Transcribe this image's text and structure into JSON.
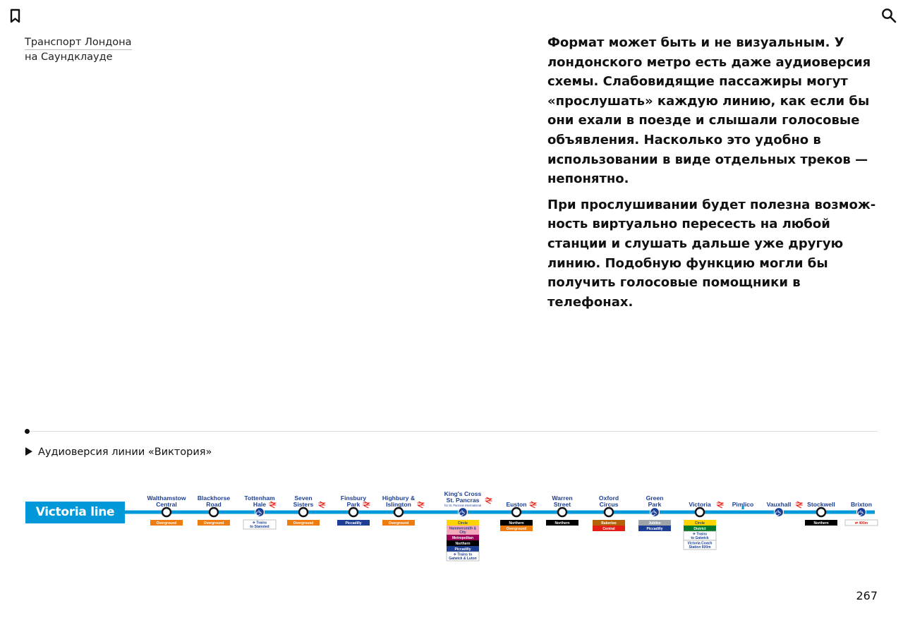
{
  "icons": {
    "bookmark": "bookmark-icon",
    "search": "search-icon",
    "play": "play-icon"
  },
  "sidebar": {
    "line1": "Транспорт Лондона",
    "line2": "на Саундклауде"
  },
  "article": {
    "p1": "Формат может быть и не визуальным. У лондон­ского метро есть даже аудиоверсия схемы. Сла­бовидящие пассажиры могут «прослушать» каждую линию, как если бы они ехали в поезде и слышали голосовые объявления. Насколько это удобно в использовании в виде отдельных треков — непонятно.",
    "p2": "При прослушивании будет полезна возмож­ность виртуально пересесть на любой станции и слушать дальше уже другую линию. Подоб­ную функцию могли бы получить голосовые помощники в телефонах."
  },
  "audio_link": "Аудиоверсия линии «Виктория»",
  "line_badge": "Victoria line",
  "colors": {
    "victoria": "#0098d8",
    "overground": "#ee7c0e",
    "piccadilly": "#1c3f94",
    "northern": "#000000",
    "circle": "#ffd300",
    "hammersmith": "#f3a9bb",
    "metropolitan": "#9b0056",
    "bakerloo": "#b36305",
    "central": "#e32017",
    "jubilee": "#a0a5a9",
    "district": "#00782a",
    "station_text": "#1c3f94",
    "rail": "#e32017"
  },
  "stations": [
    {
      "name": [
        "Walthamstow",
        "Central"
      ],
      "rail": false,
      "step_free": false,
      "interchanges": [
        {
          "label": "Overground",
          "color": "#ee7c0e",
          "text": "#ffffff"
        }
      ]
    },
    {
      "name": [
        "Blackhorse",
        "Road"
      ],
      "rail": false,
      "step_free": false,
      "interchanges": [
        {
          "label": "Overground",
          "color": "#ee7c0e",
          "text": "#ffffff"
        }
      ]
    },
    {
      "name": [
        "Tottenham",
        "Hale"
      ],
      "rail": true,
      "step_free": true,
      "interchanges": [
        {
          "label": "✈ Trains to Stansted",
          "color": "#ffffff",
          "text": "#1c3f94",
          "outline": true
        }
      ]
    },
    {
      "name": [
        "Seven",
        "Sisters"
      ],
      "rail": true,
      "step_free": false,
      "interchanges": [
        {
          "label": "Overground",
          "color": "#ee7c0e",
          "text": "#ffffff"
        }
      ]
    },
    {
      "name": [
        "Finsbury",
        "Park"
      ],
      "rail": true,
      "step_free": false,
      "interchanges": [
        {
          "label": "Piccadilly",
          "color": "#1c3f94",
          "text": "#ffffff"
        }
      ]
    },
    {
      "name": [
        "Highbury &",
        "Islington"
      ],
      "rail": true,
      "step_free": false,
      "interchanges": [
        {
          "label": "Overground",
          "color": "#ee7c0e",
          "text": "#ffffff"
        }
      ]
    },
    {
      "name": [
        "King's Cross",
        "St. Pancras"
      ],
      "sub": "for St. Pancras International",
      "rail": true,
      "step_free": true,
      "interchanges": [
        {
          "label": "Circle",
          "color": "#ffd300",
          "text": "#1c3f94"
        },
        {
          "label": "Hammersmith & City",
          "color": "#f3a9bb",
          "text": "#1c3f94"
        },
        {
          "label": "Metropolitan",
          "color": "#9b0056",
          "text": "#ffffff"
        },
        {
          "label": "Northern",
          "color": "#000000",
          "text": "#ffffff"
        },
        {
          "label": "Piccadilly",
          "color": "#1c3f94",
          "text": "#ffffff"
        },
        {
          "label": "✈ Trains to Gatwick & Luton",
          "color": "#ffffff",
          "text": "#1c3f94",
          "outline": true
        }
      ]
    },
    {
      "name": [
        "Euston"
      ],
      "rail": true,
      "step_free": false,
      "interchanges": [
        {
          "label": "Northern",
          "color": "#000000",
          "text": "#ffffff"
        },
        {
          "label": "Overground",
          "color": "#ee7c0e",
          "text": "#ffffff"
        }
      ]
    },
    {
      "name": [
        "Warren",
        "Street"
      ],
      "rail": false,
      "step_free": false,
      "interchanges": [
        {
          "label": "Northern",
          "color": "#000000",
          "text": "#ffffff"
        }
      ]
    },
    {
      "name": [
        "Oxford",
        "Circus"
      ],
      "rail": false,
      "step_free": false,
      "interchanges": [
        {
          "label": "Bakerloo",
          "color": "#b36305",
          "text": "#ffffff"
        },
        {
          "label": "Central",
          "color": "#e32017",
          "text": "#ffffff"
        }
      ]
    },
    {
      "name": [
        "Green",
        "Park"
      ],
      "rail": false,
      "step_free": true,
      "interchanges": [
        {
          "label": "Jubilee",
          "color": "#a0a5a9",
          "text": "#ffffff"
        },
        {
          "label": "Piccadilly",
          "color": "#1c3f94",
          "text": "#ffffff"
        }
      ]
    },
    {
      "name": [
        "Victoria"
      ],
      "rail": true,
      "step_free": false,
      "interchanges": [
        {
          "label": "Circle",
          "color": "#ffd300",
          "text": "#1c3f94"
        },
        {
          "label": "District",
          "color": "#00782a",
          "text": "#ffffff"
        },
        {
          "label": "✈ Trains to Gatwick",
          "color": "#ffffff",
          "text": "#1c3f94",
          "outline": true
        },
        {
          "label": "Victoria Coach Station 600m",
          "color": "#ffffff",
          "text": "#1c3f94",
          "outline": true
        }
      ]
    },
    {
      "name": [
        "Pimlico"
      ],
      "rail": false,
      "step_free": false,
      "tick": true,
      "interchanges": []
    },
    {
      "name": [
        "Vauxhall"
      ],
      "rail": true,
      "step_free": true,
      "interchanges": []
    },
    {
      "name": [
        "Stockwell"
      ],
      "rail": false,
      "step_free": false,
      "interchanges": [
        {
          "label": "Northern",
          "color": "#000000",
          "text": "#ffffff"
        }
      ]
    },
    {
      "name": [
        "Brixton"
      ],
      "rail": false,
      "step_free": true,
      "interchanges": [
        {
          "label": "⇌ 400m",
          "color": "#ffffff",
          "text": "#e32017",
          "outline": true
        }
      ]
    }
  ],
  "page_number": "267"
}
